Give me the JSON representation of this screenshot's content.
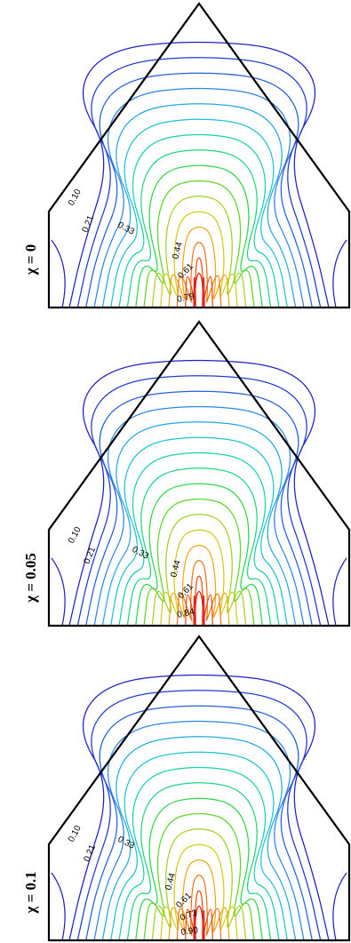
{
  "panels": [
    {
      "chi_label": "χ = 0",
      "contour_labels": [
        "0.10",
        "0.21",
        "0.33",
        "0.44",
        "0.61",
        "0.79"
      ]
    },
    {
      "chi_label": "χ = 0.05",
      "contour_labels": [
        "0.10",
        "0.21",
        "0.33",
        "0.44",
        "0.61",
        "0.84"
      ]
    },
    {
      "chi_label": "χ = 0.1",
      "contour_labels": [
        "0.10",
        "0.21",
        "0.33",
        "0.44",
        "0.61",
        "0.73",
        "0.90"
      ]
    }
  ],
  "contour_colors": [
    "#2020c8",
    "#1f3ad6",
    "#2460e2",
    "#2d86ea",
    "#26a8e6",
    "#1cc4d4",
    "#18d2b0",
    "#1ed880",
    "#2ad84a",
    "#5ed628",
    "#9ed41e",
    "#d2cc14",
    "#f0a810",
    "#f47812",
    "#f04a10",
    "#e62010"
  ]
}
